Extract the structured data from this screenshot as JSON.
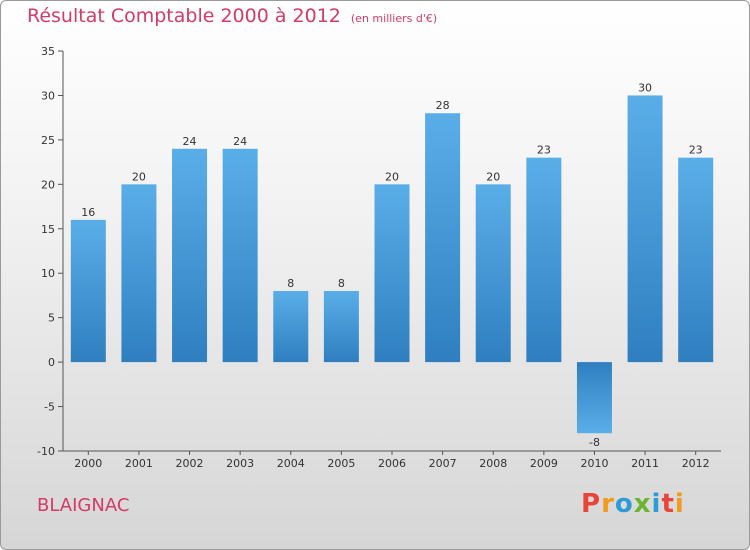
{
  "title": "Résultat Comptable 2000 à 2012",
  "unit": "(en milliers d'€)",
  "town": "BLAIGNAC",
  "logo": {
    "letters": [
      "P",
      "r",
      "o",
      "x",
      "i",
      "t",
      "i"
    ],
    "colors": [
      "#e8443a",
      "#f29a1e",
      "#2e9bd6",
      "#6bb52f",
      "#2e9bd6",
      "#e8443a",
      "#f29a1e"
    ]
  },
  "chart_data": {
    "type": "bar",
    "title": "Résultat Comptable 2000 à 2012",
    "subtitle": "(en milliers d'€)",
    "xlabel": "",
    "ylabel": "",
    "categories": [
      "2000",
      "2001",
      "2002",
      "2003",
      "2004",
      "2005",
      "2006",
      "2007",
      "2008",
      "2009",
      "2010",
      "2011",
      "2012"
    ],
    "values": [
      16,
      20,
      24,
      24,
      8,
      8,
      20,
      28,
      20,
      23,
      -8,
      30,
      23
    ],
    "ylim": [
      -10,
      35
    ],
    "yticks": [
      -10,
      -5,
      0,
      5,
      10,
      15,
      20,
      25,
      30,
      35
    ],
    "grid": false,
    "bar_color": "#3f95d6"
  }
}
